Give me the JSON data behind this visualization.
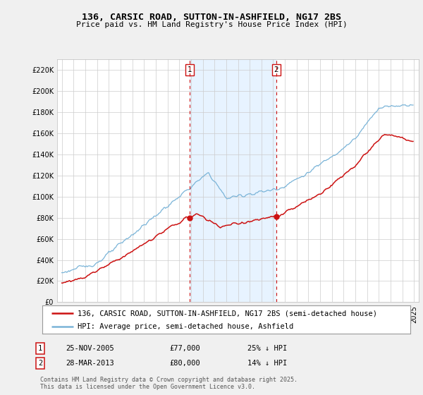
{
  "title1": "136, CARSIC ROAD, SUTTON-IN-ASHFIELD, NG17 2BS",
  "title2": "Price paid vs. HM Land Registry's House Price Index (HPI)",
  "legend1": "136, CARSIC ROAD, SUTTON-IN-ASHFIELD, NG17 2BS (semi-detached house)",
  "legend2": "HPI: Average price, semi-detached house, Ashfield",
  "marker1_label": "25-NOV-2005",
  "marker1_price": "£77,000",
  "marker1_hpi": "25% ↓ HPI",
  "marker2_label": "28-MAR-2013",
  "marker2_price": "£80,000",
  "marker2_hpi": "14% ↓ HPI",
  "footnote": "Contains HM Land Registry data © Crown copyright and database right 2025.\nThis data is licensed under the Open Government Licence v3.0.",
  "hpi_color": "#7ab4d8",
  "price_color": "#cc1111",
  "shade_color": "#ddeeff",
  "marker1_x": 2005.9,
  "marker2_x": 2013.25,
  "ylim_min": 0,
  "ylim_max": 230000,
  "yticks": [
    0,
    20000,
    40000,
    60000,
    80000,
    100000,
    120000,
    140000,
    160000,
    180000,
    200000,
    220000
  ],
  "bg_color": "#f0f0f0",
  "plot_bg": "#ffffff",
  "grid_color": "#cccccc"
}
